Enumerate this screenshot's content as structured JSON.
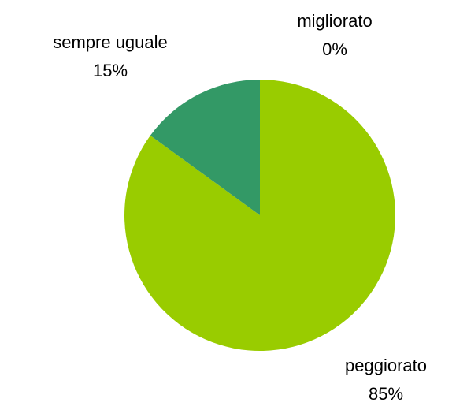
{
  "chart_data": {
    "type": "pie",
    "categories": [
      "migliorato",
      "peggiorato",
      "sempre uguale"
    ],
    "values": [
      0,
      85,
      15
    ],
    "value_labels": [
      "0%",
      "85%",
      "15%"
    ],
    "colors": [
      "#9999ff",
      "#99cc00",
      "#339966"
    ]
  }
}
